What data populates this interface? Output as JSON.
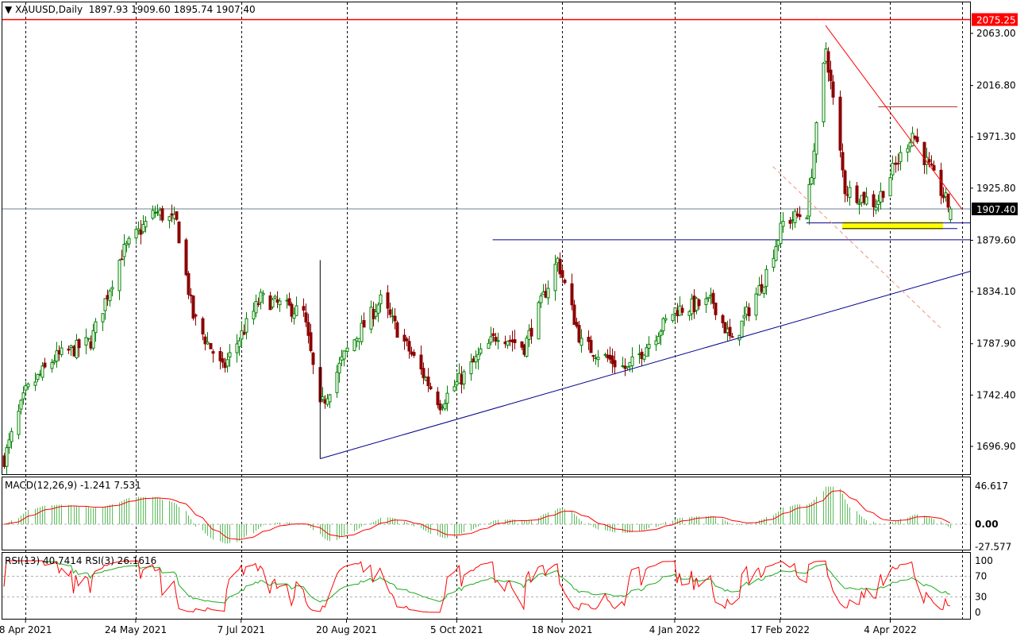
{
  "header": {
    "symbol_caption": "XAUUSD,Daily",
    "ohlc": "1897.93 1909.60 1895.74 1907.40"
  },
  "colors": {
    "bull_candle": "#008000",
    "bear_candle": "#8B0000",
    "resistance_line": "#FF0000",
    "support_trend": "#00008B",
    "macd_hist": "#5BBE5B",
    "macd_signal": "#FF0000",
    "rsi_fast": "#FF0000",
    "rsi_slow": "#1FAA1F",
    "zone": "#FFFF00",
    "current_price_bg": "#000000",
    "resistance_label_bg": "#FF0000"
  },
  "price_axis": {
    "ticks": [
      "2063.00",
      "2016.80",
      "1971.30",
      "1925.80",
      "1879.60",
      "1834.10",
      "1787.90",
      "1742.40",
      "1696.90"
    ],
    "resistance_label": "2075.25",
    "current_label": "1907.40"
  },
  "time_axis": {
    "labels": [
      "8 Apr 2021",
      "24 May 2021",
      "7 Jul 2021",
      "20 Aug 2021",
      "5 Oct 2021",
      "18 Nov 2021",
      "4 Jan 2022",
      "17 Feb 2022",
      "4 Apr 2022"
    ]
  },
  "macd": {
    "caption": "MACD(12,26,9) -1.241 7.531",
    "ticks": [
      "46.617",
      "0.00",
      "-27.577"
    ]
  },
  "rsi": {
    "caption": "RSI(13) 40.7414  RSI(3) 26.1616",
    "ticks": [
      "100",
      "70",
      "30",
      "0"
    ]
  },
  "chart_data": {
    "type": "candlestick",
    "symbol": "XAUUSD",
    "timeframe": "Daily",
    "last_bar": {
      "open": 1897.93,
      "high": 1909.6,
      "low": 1895.74,
      "close": 1907.4
    },
    "y_range": [
      1680,
      2080
    ],
    "anchors": [
      {
        "date": "2021-03-30",
        "close": 1686
      },
      {
        "date": "2021-04-08",
        "close": 1745
      },
      {
        "date": "2021-04-20",
        "close": 1775
      },
      {
        "date": "2021-05-05",
        "close": 1790
      },
      {
        "date": "2021-05-18",
        "close": 1868
      },
      {
        "date": "2021-06-01",
        "close": 1905
      },
      {
        "date": "2021-06-10",
        "close": 1895
      },
      {
        "date": "2021-06-17",
        "close": 1812
      },
      {
        "date": "2021-06-29",
        "close": 1765
      },
      {
        "date": "2021-07-15",
        "close": 1828
      },
      {
        "date": "2021-08-02",
        "close": 1815
      },
      {
        "date": "2021-08-09",
        "close": 1730
      },
      {
        "date": "2021-08-20",
        "close": 1782
      },
      {
        "date": "2021-09-03",
        "close": 1826
      },
      {
        "date": "2021-09-10",
        "close": 1800
      },
      {
        "date": "2021-09-28",
        "close": 1735
      },
      {
        "date": "2021-10-08",
        "close": 1760
      },
      {
        "date": "2021-10-22",
        "close": 1797
      },
      {
        "date": "2021-11-02",
        "close": 1785
      },
      {
        "date": "2021-11-16",
        "close": 1862
      },
      {
        "date": "2021-11-26",
        "close": 1788
      },
      {
        "date": "2021-12-15",
        "close": 1765
      },
      {
        "date": "2022-01-04",
        "close": 1818
      },
      {
        "date": "2022-01-20",
        "close": 1825
      },
      {
        "date": "2022-01-28",
        "close": 1788
      },
      {
        "date": "2022-02-10",
        "close": 1845
      },
      {
        "date": "2022-02-18",
        "close": 1895
      },
      {
        "date": "2022-02-28",
        "close": 1905
      },
      {
        "date": "2022-03-08",
        "close": 2050
      },
      {
        "date": "2022-03-16",
        "close": 1925
      },
      {
        "date": "2022-03-29",
        "close": 1912
      },
      {
        "date": "2022-04-13",
        "close": 1975
      },
      {
        "date": "2022-04-22",
        "close": 1935
      },
      {
        "date": "2022-04-29",
        "close": 1907
      }
    ],
    "horizontal_levels": [
      {
        "price": 2075.25,
        "color": "red"
      },
      {
        "price": 1998,
        "color": "darkred"
      },
      {
        "price": 1880,
        "color": "darkblue"
      },
      {
        "price": 1895,
        "color": "darkblue"
      },
      {
        "price": 1890,
        "color": "darkblue"
      }
    ],
    "support_zone": {
      "from": 1889,
      "to": 1896
    },
    "trendlines": [
      {
        "name": "rising support",
        "from": {
          "date": "2021-08-09",
          "price": 1686
        },
        "to": {
          "date": "2022-05-04",
          "price": 1850
        }
      },
      {
        "name": "falling resistance",
        "from": {
          "date": "2022-03-08",
          "price": 2070
        },
        "to": {
          "date": "2022-05-04",
          "price": 1907
        }
      },
      {
        "name": "dashed channel",
        "from": {
          "date": "2022-02-14",
          "price": 1945
        },
        "to": {
          "date": "2022-04-26",
          "price": 1800
        }
      }
    ],
    "macd": {
      "fast": 12,
      "slow": 26,
      "signal": 9,
      "main": -1.241,
      "signal_value": 7.531,
      "range": [
        -27.577,
        46.617
      ]
    },
    "rsi": {
      "periods": [
        13,
        3
      ],
      "values": [
        40.7414,
        26.1616
      ],
      "levels": [
        70,
        30
      ]
    }
  }
}
